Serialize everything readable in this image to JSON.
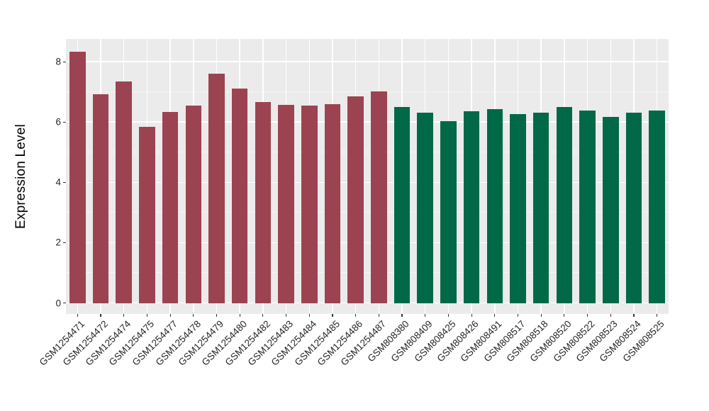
{
  "chart_data": {
    "type": "bar",
    "title": "",
    "xlabel": "",
    "ylabel": "Expression Level",
    "ylim": [
      0,
      8.75
    ],
    "yticks_major": [
      0,
      2,
      4,
      6,
      8
    ],
    "yticks_minor": [
      1,
      3,
      5,
      7
    ],
    "grid": true,
    "legend": "none",
    "categories": [
      "GSM1254471",
      "GSM1254472",
      "GSM1254474",
      "GSM1254475",
      "GSM1254477",
      "GSM1254478",
      "GSM1254479",
      "GSM1254480",
      "GSM1254482",
      "GSM1254483",
      "GSM1254484",
      "GSM1254485",
      "GSM1254486",
      "GSM1254487",
      "GSM808380",
      "GSM808409",
      "GSM808425",
      "GSM808426",
      "GSM808491",
      "GSM808517",
      "GSM808518",
      "GSM808520",
      "GSM808522",
      "GSM808523",
      "GSM808524",
      "GSM808525"
    ],
    "values": [
      8.33,
      6.92,
      7.34,
      5.84,
      6.34,
      6.55,
      7.6,
      7.1,
      6.66,
      6.57,
      6.54,
      6.59,
      6.86,
      7.01,
      6.49,
      6.31,
      6.04,
      6.36,
      6.42,
      6.27,
      6.3,
      6.49,
      6.39,
      6.17,
      6.31,
      6.39
    ],
    "bar_groups": [
      "A",
      "A",
      "A",
      "A",
      "A",
      "A",
      "A",
      "A",
      "A",
      "A",
      "A",
      "A",
      "A",
      "A",
      "B",
      "B",
      "B",
      "B",
      "B",
      "B",
      "B",
      "B",
      "B",
      "B",
      "B",
      "B"
    ],
    "group_colors": {
      "A": "#9C4351",
      "B": "#026948"
    }
  },
  "style": {
    "panel_bg": "#EBEBEB",
    "grid_major": "#FFFFFF",
    "grid_minor": "#F5F5F5",
    "tick_color": "#333333",
    "tick_text_color": "#262626",
    "axis_title_color": "#000000"
  }
}
